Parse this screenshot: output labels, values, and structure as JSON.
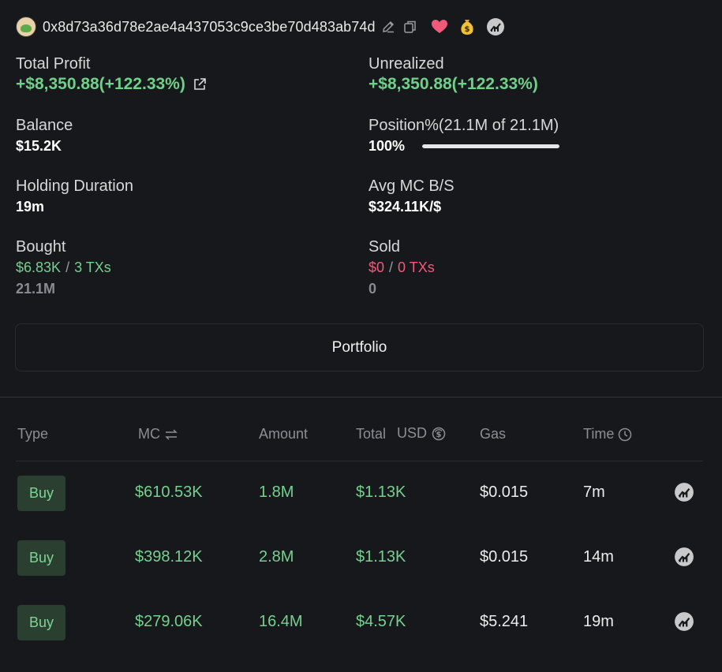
{
  "header": {
    "address": "0x8d73a36d78e2ae4a437053c9ce3be70d483ab74d"
  },
  "stats": {
    "total_profit": {
      "label": "Total Profit",
      "value": "+$8,350.88(+122.33%)"
    },
    "unrealized": {
      "label": "Unrealized",
      "value": "+$8,350.88(+122.33%)"
    },
    "balance": {
      "label": "Balance",
      "value": "$15.2K"
    },
    "position": {
      "label": "Position%(21.1M of 21.1M)",
      "value": "100%",
      "fraction": 1.0
    },
    "holding_duration": {
      "label": "Holding Duration",
      "value": "19m"
    },
    "avg_mc": {
      "label": "Avg MC B/S",
      "value": "$324.11K/$"
    },
    "bought": {
      "label": "Bought",
      "usd": "$6.83K",
      "sep": "/",
      "txs": "3 TXs",
      "amount": "21.1M"
    },
    "sold": {
      "label": "Sold",
      "usd": "$0",
      "sep": "/",
      "txs": "0 TXs",
      "amount": "0"
    }
  },
  "portfolio_label": "Portfolio",
  "table": {
    "headers": {
      "type": "Type",
      "mc": "MC",
      "amount": "Amount",
      "total": "Total",
      "usd": "USD",
      "gas": "Gas",
      "time": "Time"
    },
    "rows": [
      {
        "type": "Buy",
        "mc": "$610.53K",
        "amount": "1.8M",
        "total": "$1.13K",
        "gas": "$0.015",
        "time": "7m"
      },
      {
        "type": "Buy",
        "mc": "$398.12K",
        "amount": "2.8M",
        "total": "$1.13K",
        "gas": "$0.015",
        "time": "14m"
      },
      {
        "type": "Buy",
        "mc": "$279.06K",
        "amount": "16.4M",
        "total": "$4.57K",
        "gas": "$5.241",
        "time": "19m"
      }
    ]
  },
  "colors": {
    "background": "#17181b",
    "positive": "#76d08f",
    "negative": "#ef5a7a",
    "muted": "#8d8e93"
  },
  "icons": {
    "edit": "pencil-icon",
    "copy": "copy-icon",
    "favorite": "heart-icon",
    "money": "money-bag-icon",
    "chart": "chart-circle-icon",
    "external": "external-link-icon",
    "swap": "swap-arrows-icon",
    "usd": "dollar-circle-icon",
    "clock": "clock-icon"
  }
}
